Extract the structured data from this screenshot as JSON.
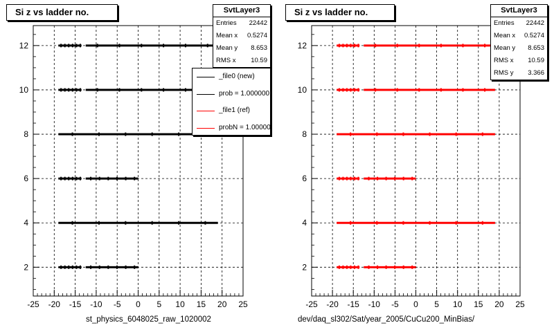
{
  "chart_data": [
    {
      "type": "scatter",
      "title": "Si z vs ladder no.",
      "xlabel": "st_physics_6048025_raw_1020002",
      "ylabel": "",
      "xlim": [
        -25,
        25
      ],
      "ylim": [
        0.7,
        12.9
      ],
      "xticks": [
        -25,
        -20,
        -15,
        -10,
        -5,
        0,
        5,
        10,
        15,
        20,
        25
      ],
      "yticks": [
        2,
        4,
        6,
        8,
        10,
        12
      ],
      "grid": true,
      "series": [
        {
          "color": "#000000",
          "bands": [
            {
              "y": 2,
              "segments": [
                [
                  -19,
                  -13.5
                ],
                [
                  -12.5,
                  0
                ]
              ]
            },
            {
              "y": 4,
              "segments": [
                [
                  -19,
                  19
                ]
              ]
            },
            {
              "y": 6,
              "segments": [
                [
                  -19,
                  -13.5
                ],
                [
                  -12.5,
                  0
                ]
              ]
            },
            {
              "y": 8,
              "segments": [
                [
                  -19,
                  19
                ]
              ]
            },
            {
              "y": 10,
              "segments": [
                [
                  -19,
                  -13.5
                ],
                [
                  -12.5,
                  19
                ]
              ]
            },
            {
              "y": 12,
              "segments": [
                [
                  -19,
                  -13.5
                ],
                [
                  -12.5,
                  19
                ]
              ]
            }
          ]
        }
      ],
      "stats": {
        "name": "SvtLayer3",
        "rows": [
          {
            "label": "Entries",
            "value": "22442"
          },
          {
            "label": "Mean x",
            "value": "0.5274"
          },
          {
            "label": "Mean y",
            "value": "8.653"
          },
          {
            "label": "RMS x",
            "value": "10.59"
          }
        ]
      },
      "legend": {
        "placement": "top-right",
        "entries": [
          {
            "label": "_file0 (new)",
            "color": "#000000"
          },
          {
            "label": "prob = 1.000000",
            "color": "#000000"
          },
          {
            "label": "_file1 (ref)",
            "color": "#ff0000"
          },
          {
            "label": "probN = 1.000000",
            "color": "#ff0000"
          }
        ]
      }
    },
    {
      "type": "scatter",
      "title": "Si z vs ladder no.",
      "xlabel": "dev/daq_sl302/Sat/year_2005/CuCu200_MinBias/",
      "ylabel": "",
      "xlim": [
        -25,
        25
      ],
      "ylim": [
        0.7,
        12.9
      ],
      "xticks": [
        -25,
        -20,
        -15,
        -10,
        -5,
        0,
        5,
        10,
        15,
        20,
        25
      ],
      "yticks": [
        2,
        4,
        6,
        8,
        10,
        12
      ],
      "grid": true,
      "series": [
        {
          "color": "#ff0000",
          "bands": [
            {
              "y": 2,
              "segments": [
                [
                  -19,
                  -13.5
                ],
                [
                  -12.5,
                  0
                ]
              ]
            },
            {
              "y": 4,
              "segments": [
                [
                  -19,
                  19
                ]
              ]
            },
            {
              "y": 6,
              "segments": [
                [
                  -19,
                  -13.5
                ],
                [
                  -12.5,
                  0
                ]
              ]
            },
            {
              "y": 8,
              "segments": [
                [
                  -19,
                  19
                ]
              ]
            },
            {
              "y": 10,
              "segments": [
                [
                  -19,
                  -13.5
                ],
                [
                  -12.5,
                  19
                ]
              ]
            },
            {
              "y": 12,
              "segments": [
                [
                  -19,
                  -13.5
                ],
                [
                  -12.5,
                  19
                ]
              ]
            }
          ]
        }
      ],
      "stats": {
        "name": "SvtLayer3",
        "rows": [
          {
            "label": "Entries",
            "value": "22442"
          },
          {
            "label": "Mean x",
            "value": "0.5274"
          },
          {
            "label": "Mean y",
            "value": "8.653"
          },
          {
            "label": "RMS x",
            "value": "10.59"
          },
          {
            "label": "RMS y",
            "value": "3.366"
          }
        ]
      }
    }
  ]
}
